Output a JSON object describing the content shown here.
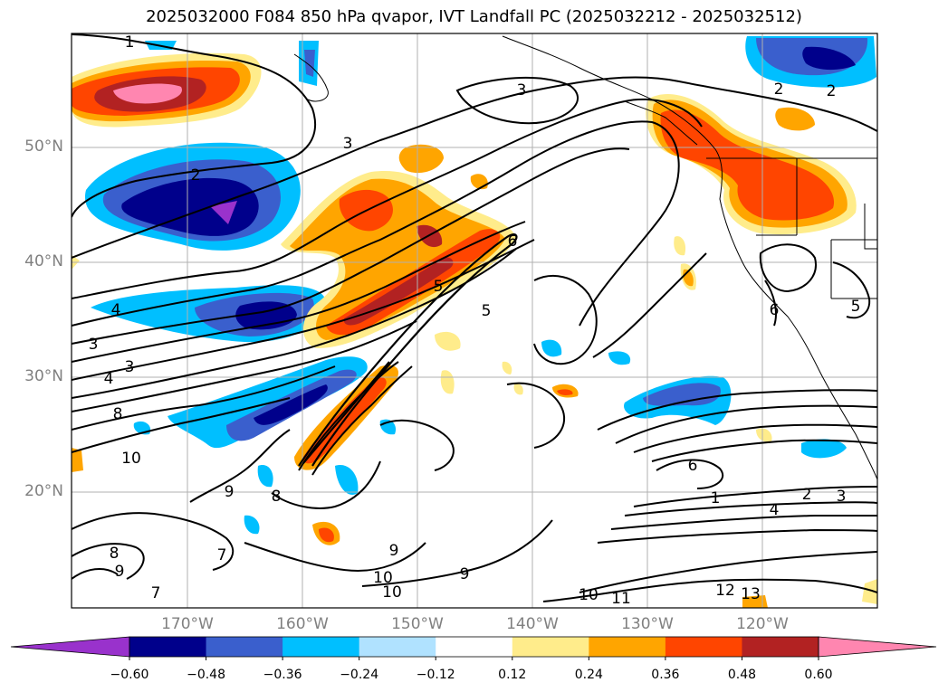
{
  "title": "2025032000 F084 850 hPa qvapor, IVT Landfall PC (2025032212 - 2025032512)",
  "latitude_labels": [
    "50°N",
    "40°N",
    "30°N",
    "20°N"
  ],
  "longitude_labels": [
    "170°W",
    "160°W",
    "150°W",
    "140°W",
    "130°W",
    "120°W"
  ],
  "contour_labels": [
    {
      "text": "1"
    },
    {
      "text": "2"
    },
    {
      "text": "3"
    },
    {
      "text": "3"
    },
    {
      "text": "2"
    },
    {
      "text": "2"
    },
    {
      "text": "6"
    },
    {
      "text": "5"
    },
    {
      "text": "5"
    },
    {
      "text": "4"
    },
    {
      "text": "3"
    },
    {
      "text": "4"
    },
    {
      "text": "3"
    },
    {
      "text": "8"
    },
    {
      "text": "10"
    },
    {
      "text": "9"
    },
    {
      "text": "8"
    },
    {
      "text": "7"
    },
    {
      "text": "8"
    },
    {
      "text": "9"
    },
    {
      "text": "7"
    },
    {
      "text": "10"
    },
    {
      "text": "10"
    },
    {
      "text": "9"
    },
    {
      "text": "6"
    },
    {
      "text": "1"
    },
    {
      "text": "2"
    },
    {
      "text": "3"
    },
    {
      "text": "4"
    },
    {
      "text": "10"
    },
    {
      "text": "11"
    },
    {
      "text": "12"
    },
    {
      "text": "13"
    },
    {
      "text": "5"
    },
    {
      "text": "6"
    },
    {
      "text": "9"
    }
  ],
  "colorbar": {
    "colors": [
      "#9932CC",
      "#00008B",
      "#3A5FCD",
      "#00BFFF",
      "#B0E2FF",
      "#FFFFFF",
      "#FFEC8B",
      "#FFA500",
      "#FF4500",
      "#B22222",
      "#FF86B0"
    ],
    "tick_labels": [
      "−0.60",
      "−0.48",
      "−0.36",
      "−0.24",
      "−0.12",
      "0.12",
      "0.24",
      "0.36",
      "0.48",
      "0.60"
    ]
  }
}
